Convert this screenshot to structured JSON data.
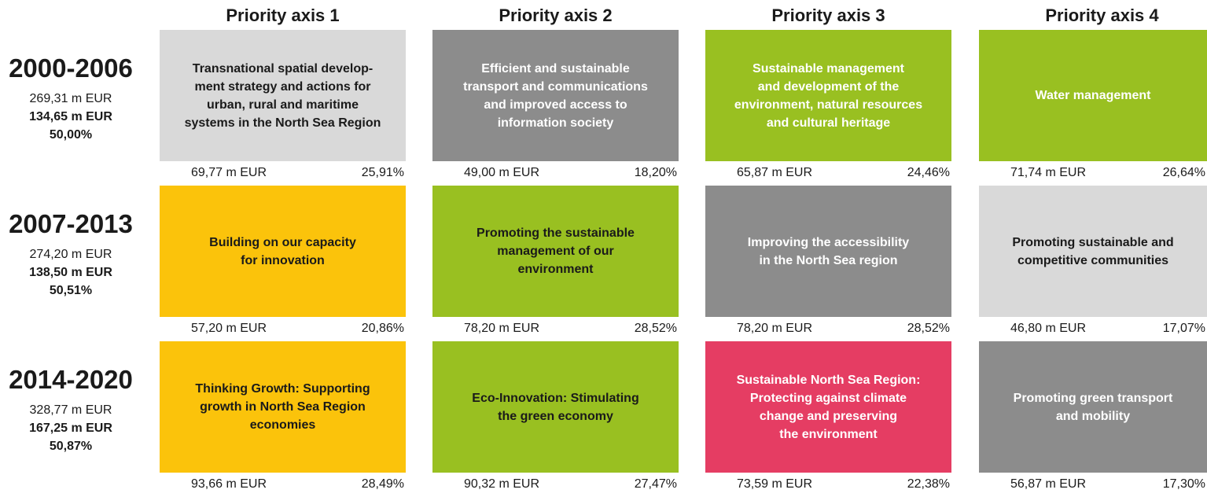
{
  "columns": [
    "Priority axis 1",
    "Priority axis 2",
    "Priority axis 3",
    "Priority axis 4"
  ],
  "rows": [
    {
      "period": "2000-2006",
      "total": "269,31 m EUR",
      "funding": "134,65 m EUR",
      "share": "50,00%",
      "cells": [
        {
          "lines": [
            "Transnational spatial develop-",
            "ment strategy and actions for",
            "urban, rural and maritime",
            "systems in the North Sea Region"
          ],
          "amount": "69,77 m EUR",
          "share": "25,91%",
          "color": "#d9d9d9",
          "text_color": "#1a1a1a"
        },
        {
          "lines": [
            "Efficient and sustainable",
            "transport and communications",
            "and improved access to",
            "information society"
          ],
          "amount": "49,00 m EUR",
          "share": "18,20%",
          "color": "#8c8c8c",
          "text_color": "#ffffff"
        },
        {
          "lines": [
            "Sustainable management",
            "and development of the",
            "environment, natural resources",
            "and cultural heritage"
          ],
          "amount": "65,87 m EUR",
          "share": "24,46%",
          "color": "#99c021",
          "text_color": "#ffffff"
        },
        {
          "lines": [
            "Water management"
          ],
          "amount": "71,74 m EUR",
          "share": "26,64%",
          "color": "#99c021",
          "text_color": "#ffffff"
        }
      ]
    },
    {
      "period": "2007-2013",
      "total": "274,20 m EUR",
      "funding": "138,50 m EUR",
      "share": "50,51%",
      "cells": [
        {
          "lines": [
            "Building on our capacity",
            "for innovation"
          ],
          "amount": "57,20 m EUR",
          "share": "20,86%",
          "color": "#fbc30b",
          "text_color": "#1a1a1a"
        },
        {
          "lines": [
            "Promoting the sustainable",
            "management of our",
            "environment"
          ],
          "amount": "78,20 m EUR",
          "share": "28,52%",
          "color": "#99c021",
          "text_color": "#1a1a1a"
        },
        {
          "lines": [
            "Improving the accessibility",
            "in the North Sea region"
          ],
          "amount": "78,20 m EUR",
          "share": "28,52%",
          "color": "#8c8c8c",
          "text_color": "#ffffff"
        },
        {
          "lines": [
            "Promoting sustainable and",
            "competitive communities"
          ],
          "amount": "46,80 m EUR",
          "share": "17,07%",
          "color": "#d9d9d9",
          "text_color": "#1a1a1a"
        }
      ]
    },
    {
      "period": "2014-2020",
      "total": "328,77 m EUR",
      "funding": "167,25 m EUR",
      "share": "50,87%",
      "cells": [
        {
          "lines": [
            "Thinking Growth: Supporting",
            "growth in North Sea Region",
            "economies"
          ],
          "amount": "93,66 m EUR",
          "share": "28,49%",
          "color": "#fbc30b",
          "text_color": "#1a1a1a"
        },
        {
          "lines": [
            "Eco-Innovation: Stimulating",
            "the green economy"
          ],
          "amount": "90,32 m EUR",
          "share": "27,47%",
          "color": "#99c021",
          "text_color": "#1a1a1a"
        },
        {
          "lines": [
            "Sustainable North Sea Region:",
            "Protecting against climate",
            "change and preserving",
            "the environment"
          ],
          "amount": "73,59 m EUR",
          "share": "22,38%",
          "color": "#e53d63",
          "text_color": "#ffffff"
        },
        {
          "lines": [
            "Promoting green transport",
            "and mobility"
          ],
          "amount": "56,87 m EUR",
          "share": "17,30%",
          "color": "#8c8c8c",
          "text_color": "#ffffff"
        }
      ]
    }
  ]
}
